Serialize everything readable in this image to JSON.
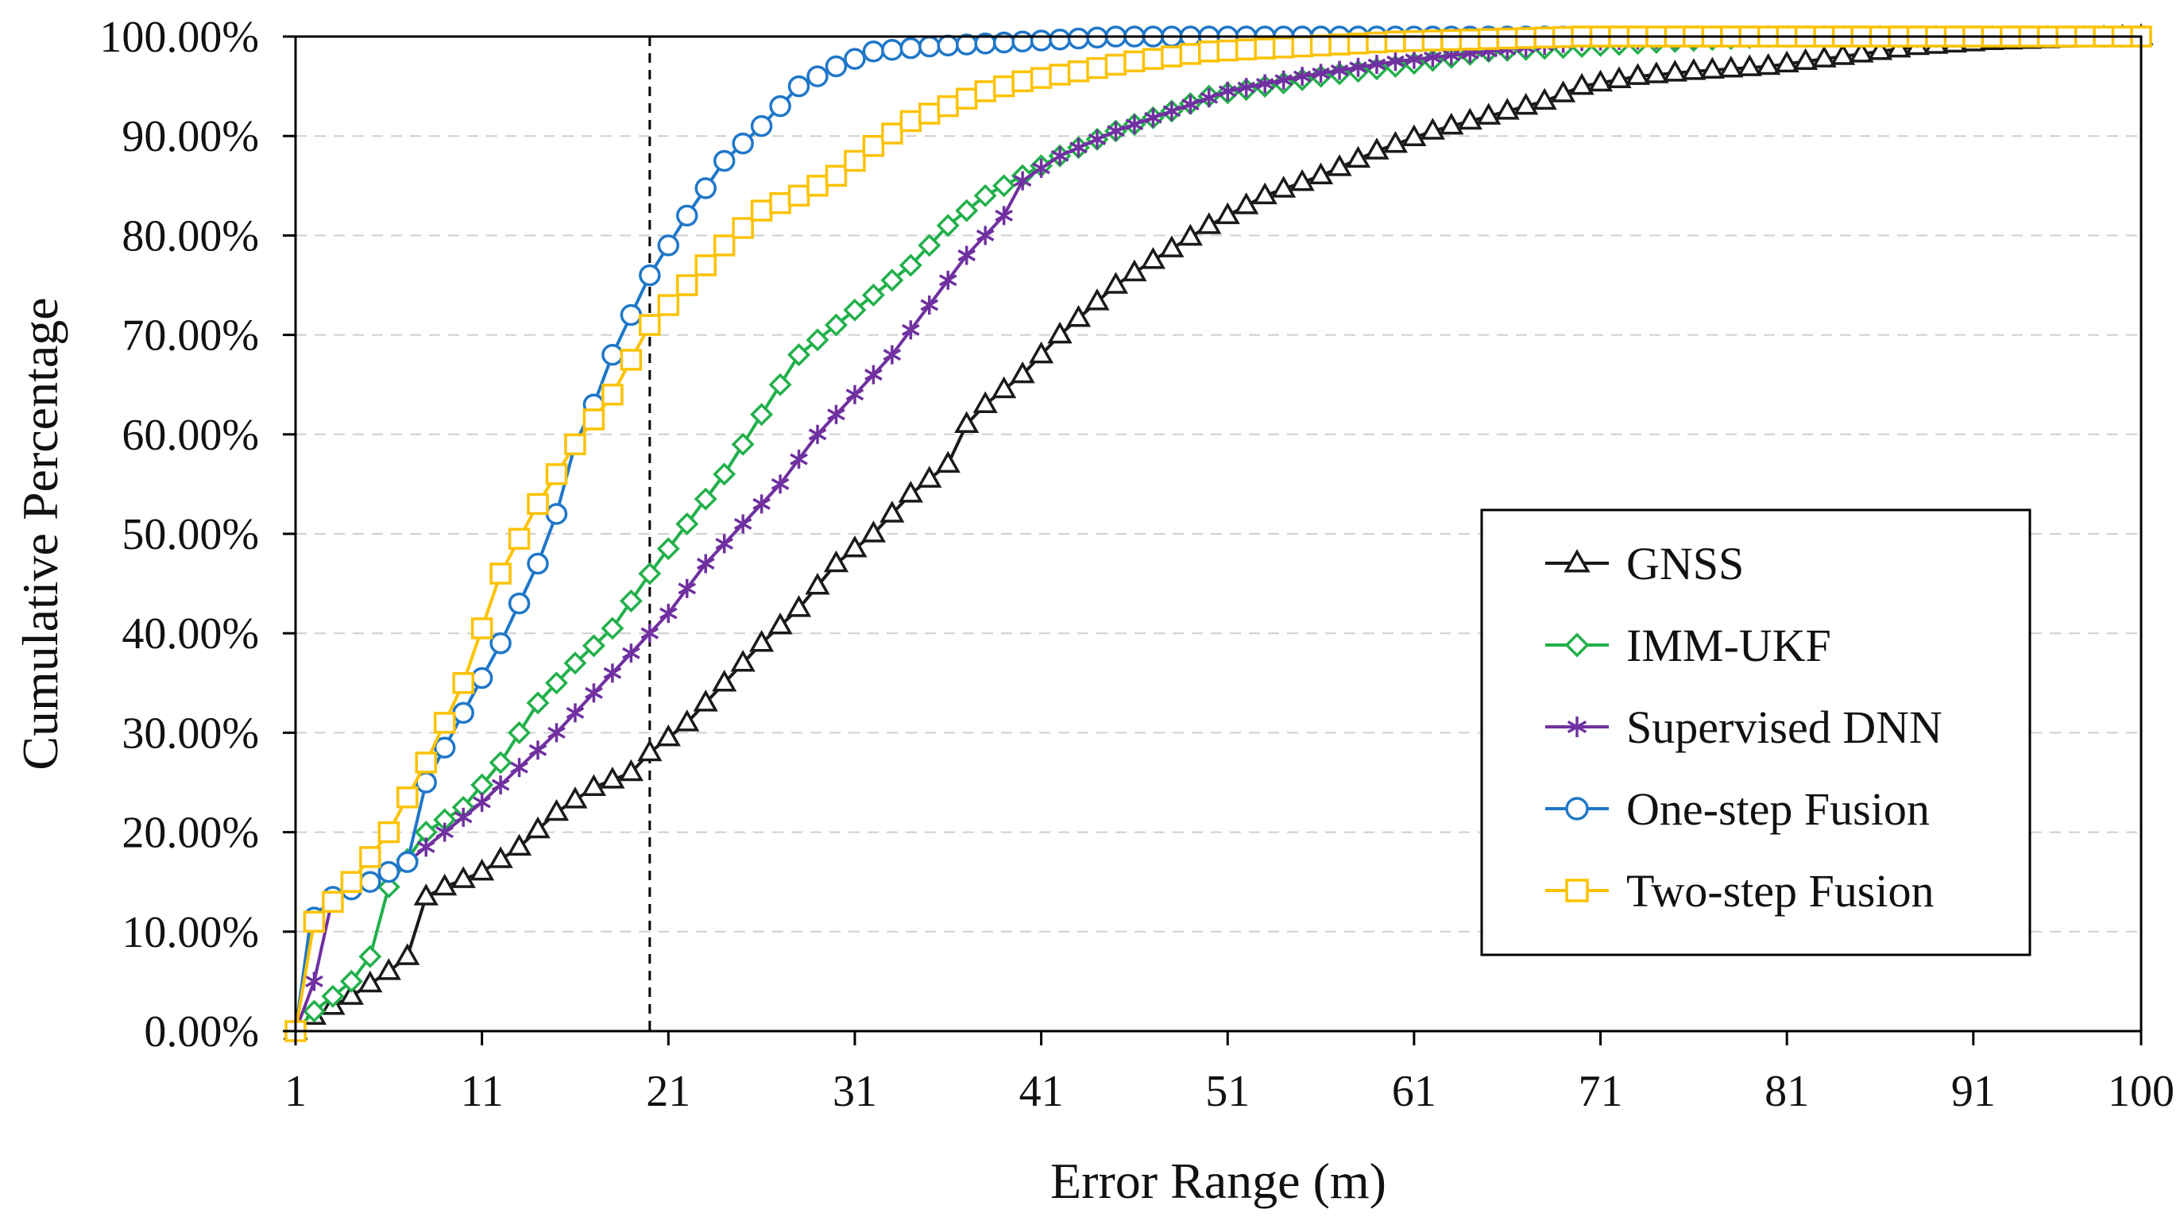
{
  "chart_data": {
    "type": "line",
    "title": "",
    "xlabel": "Error Range (m)",
    "ylabel": "Cumulative Percentage",
    "xlim": [
      1,
      100
    ],
    "ylim": [
      0,
      100
    ],
    "x_ticks": [
      1,
      11,
      21,
      31,
      41,
      51,
      61,
      71,
      81,
      91,
      100
    ],
    "x_tick_labels": [
      "1",
      "11",
      "21",
      "31",
      "41",
      "51",
      "61",
      "71",
      "81",
      "91",
      "100"
    ],
    "y_ticks": [
      0,
      10,
      20,
      30,
      40,
      50,
      60,
      70,
      80,
      90,
      100
    ],
    "y_tick_labels": [
      "0.00%",
      "10.00%",
      "20.00%",
      "30.00%",
      "40.00%",
      "50.00%",
      "60.00%",
      "70.00%",
      "80.00%",
      "90.00%",
      "100.00%"
    ],
    "grid": "horizontal dashed",
    "reference_line": {
      "x": 20,
      "style": "dashed",
      "color": "#000000"
    },
    "legend_position": "lower-right",
    "series": [
      {
        "name": "GNSS",
        "color": "#1a1a1a",
        "marker": "triangle",
        "x": [
          1,
          2,
          4,
          6,
          7,
          8,
          9,
          11,
          13,
          15,
          17,
          19,
          20,
          22,
          24,
          26,
          28,
          30,
          32,
          34,
          36,
          37,
          38,
          40,
          42,
          45,
          47,
          50,
          53,
          56,
          59,
          62,
          65,
          68,
          70,
          73,
          76,
          80,
          84,
          88,
          92,
          100
        ],
        "y": [
          0,
          1.5,
          3.5,
          6,
          7.5,
          13.5,
          14.5,
          16,
          18.5,
          22,
          24.5,
          26,
          28,
          31,
          35,
          39,
          42.5,
          47,
          50,
          54,
          57,
          61,
          63,
          66,
          70,
          75,
          77.5,
          81,
          84,
          86,
          88.5,
          90.5,
          92,
          93.5,
          95,
          96,
          96.5,
          97,
          98,
          99,
          99.5,
          100
        ]
      },
      {
        "name": "IMM-UKF",
        "color": "#22b04b",
        "marker": "diamond",
        "x": [
          1,
          2,
          4,
          5,
          6,
          8,
          10,
          12,
          14,
          16,
          18,
          20,
          22,
          24,
          26,
          28,
          30,
          32,
          34,
          36,
          38,
          40,
          42,
          45,
          48,
          50,
          53,
          56,
          60,
          65,
          70,
          75,
          80,
          90,
          100
        ],
        "y": [
          0,
          2,
          5,
          7.5,
          14.5,
          20,
          22.5,
          27,
          33,
          37,
          40.5,
          46,
          51,
          56,
          62,
          68,
          71,
          74,
          77,
          81,
          84,
          86,
          88,
          90.5,
          92.5,
          94,
          95,
          96,
          97,
          98.5,
          99,
          99.5,
          100,
          100,
          100
        ]
      },
      {
        "name": "Supervised DNN",
        "color": "#7030a0",
        "marker": "star",
        "x": [
          1,
          2,
          3,
          5,
          7,
          9,
          11,
          13,
          15,
          17,
          19,
          21,
          23,
          25,
          27,
          29,
          31,
          33,
          35,
          37,
          39,
          40,
          42,
          45,
          48,
          51,
          55,
          60,
          65,
          70,
          80,
          90,
          100
        ],
        "y": [
          0,
          5,
          13.5,
          15,
          17,
          20,
          23,
          26.5,
          30,
          34,
          38,
          42,
          47,
          51,
          55,
          60,
          64,
          68,
          73,
          78,
          82,
          85.5,
          88,
          90.5,
          92.5,
          94.5,
          96,
          97.5,
          98.5,
          99.5,
          100,
          100,
          100
        ]
      },
      {
        "name": "One-step Fusion",
        "color": "#1f77c8",
        "marker": "circle",
        "x": [
          1,
          1.8,
          3,
          5,
          7,
          8,
          10,
          12,
          14,
          15,
          16,
          17,
          18,
          19,
          20,
          21,
          22,
          24,
          26,
          28,
          30,
          32,
          35,
          40,
          45,
          50,
          60,
          70,
          80,
          90,
          100
        ],
        "y": [
          0,
          11,
          13.5,
          15,
          17,
          25,
          32,
          39,
          47,
          52,
          59,
          63,
          68,
          72,
          76,
          79,
          82,
          87.5,
          91,
          95,
          97,
          98.5,
          99,
          99.5,
          100,
          100,
          100,
          100,
          100,
          100,
          100
        ]
      },
      {
        "name": "Two-step Fusion",
        "color": "#fcc200",
        "marker": "square",
        "x": [
          1,
          2,
          4,
          6,
          8,
          10,
          12,
          14,
          16,
          18,
          20,
          22,
          24,
          26,
          28,
          30,
          32,
          34,
          36,
          38,
          40,
          43,
          46,
          50,
          55,
          60,
          70,
          80,
          90,
          100
        ],
        "y": [
          0,
          11,
          15,
          20,
          27,
          35,
          46,
          53,
          59,
          64,
          71,
          75,
          79,
          82.5,
          84,
          86,
          89,
          91.5,
          93,
          94.5,
          95.5,
          96.5,
          97.5,
          98.5,
          99,
          99.5,
          100,
          100,
          100,
          100
        ]
      }
    ]
  }
}
